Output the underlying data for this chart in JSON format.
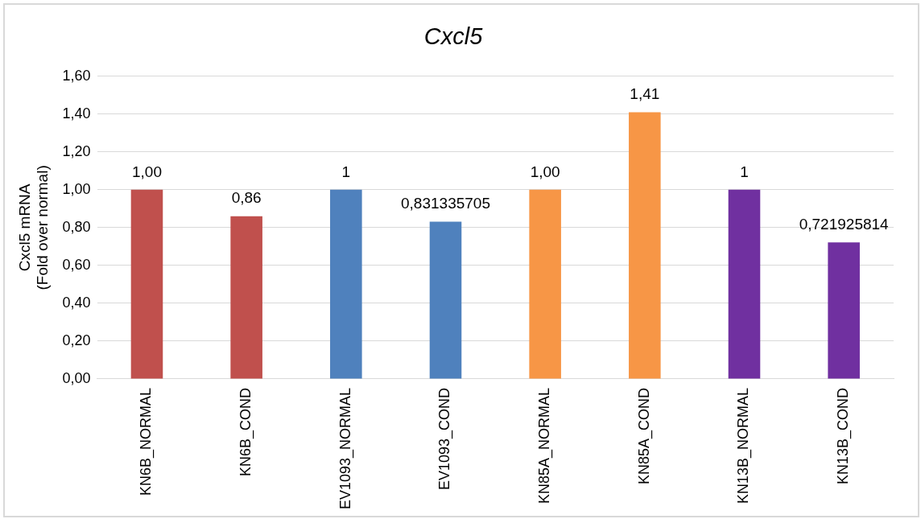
{
  "chart_data": {
    "type": "bar",
    "title": "Cxcl5",
    "ylabel": "Cxcl5 mRNA\n(Fold over normal)",
    "categories": [
      "KN6B_NORMAL",
      "KN6B_COND",
      "EV1093_NORMAL",
      "EV1093_COND",
      "KN85A_NORMAL",
      "KN85A_COND",
      "KN13B_NORMAL",
      "KN13B_COND"
    ],
    "values": [
      1.0,
      0.86,
      1,
      0.831335705,
      1.0,
      1.41,
      1,
      0.721925814
    ],
    "value_labels": [
      "1,00",
      "0,86",
      "1",
      "0,831335705",
      "1,00",
      "1,41",
      "1",
      "0,721925814"
    ],
    "colors": [
      "#c0504d",
      "#c0504d",
      "#4f81bd",
      "#4f81bd",
      "#f79646",
      "#f79646",
      "#7030a0",
      "#7030a0"
    ],
    "ylim": [
      0,
      1.6
    ],
    "yticks": [
      {
        "value": 0,
        "label": "0,00"
      },
      {
        "value": 0.2,
        "label": "0,20"
      },
      {
        "value": 0.4,
        "label": "0,40"
      },
      {
        "value": 0.6,
        "label": "0,60"
      },
      {
        "value": 0.8,
        "label": "0,80"
      },
      {
        "value": 1,
        "label": "1,00"
      },
      {
        "value": 1.2,
        "label": "1,20"
      },
      {
        "value": 1.4,
        "label": "1,40"
      },
      {
        "value": 1.6,
        "label": "1,60"
      }
    ],
    "grid": "y",
    "legend": false
  }
}
